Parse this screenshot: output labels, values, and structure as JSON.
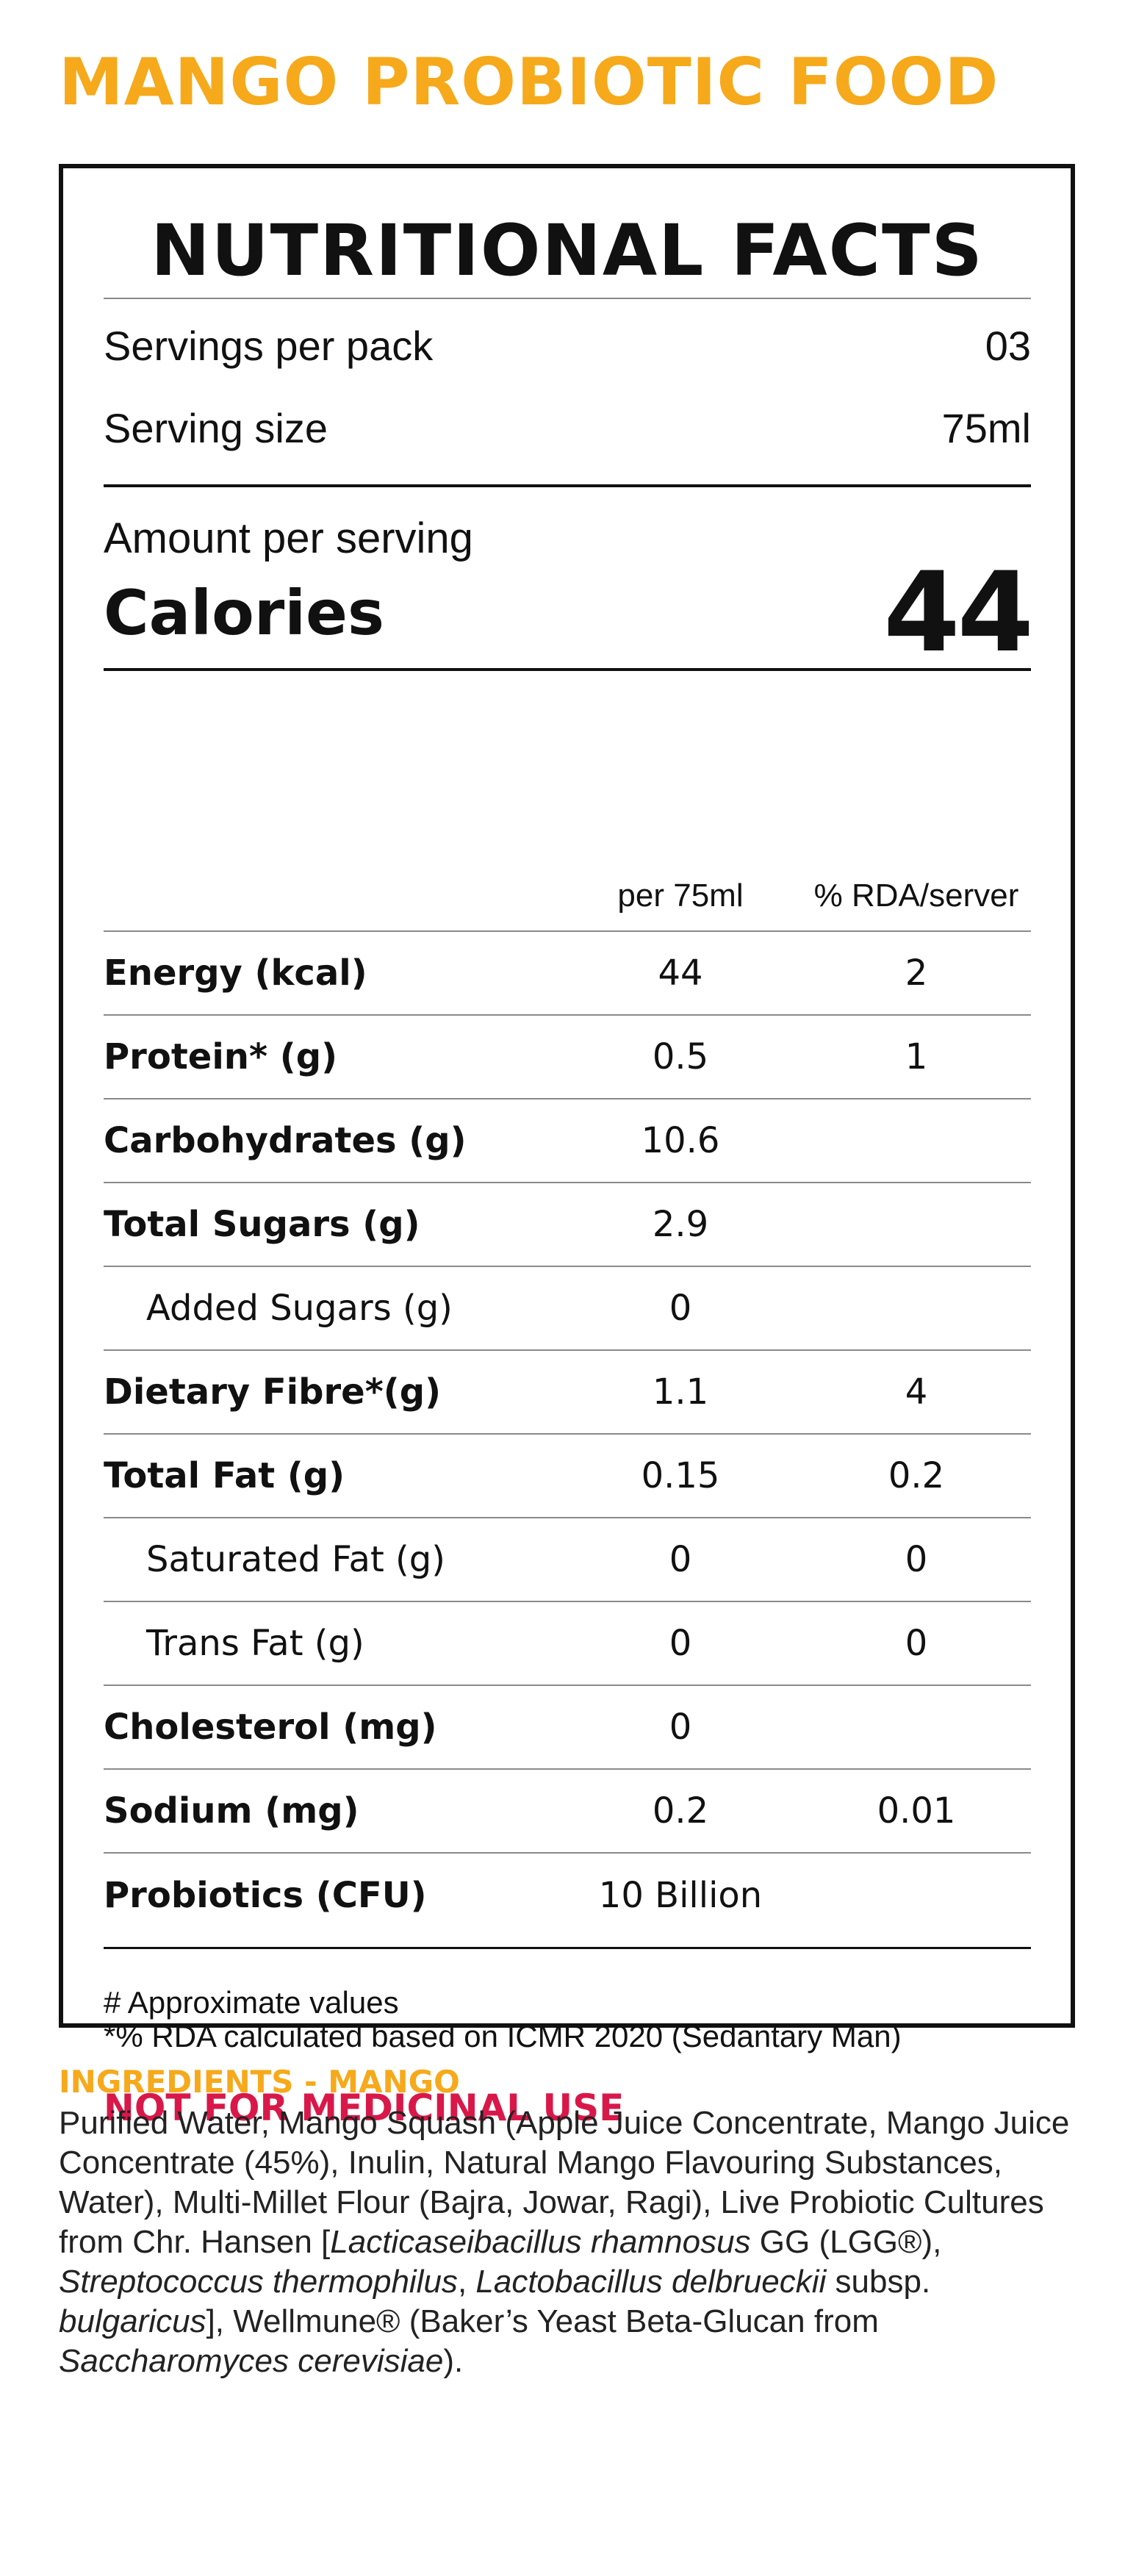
{
  "brand_title": "MANGO PROBIOTIC FOOD",
  "colors": {
    "accent": "#f6a91b",
    "warning": "#d9184a",
    "text": "#111111"
  },
  "panel": {
    "heading": "NUTRITIONAL FACTS",
    "servings_per_pack_label": "Servings per pack",
    "servings_per_pack_value": "03",
    "serving_size_label": "Serving size",
    "serving_size_value": "75ml",
    "amount_per_serving": "Amount per serving",
    "calories_label": "Calories",
    "calories_value": "44",
    "columns": {
      "per": "per 75ml",
      "rda": "% RDA/server"
    },
    "rows": [
      {
        "label": "Energy (kcal)",
        "per": "44",
        "rda": "2"
      },
      {
        "label": "Protein* (g)",
        "per": "0.5",
        "rda": "1"
      },
      {
        "label": "Carbohydrates (g)",
        "per": "10.6",
        "rda": ""
      },
      {
        "label": "Total Sugars (g)",
        "per": "2.9",
        "rda": ""
      },
      {
        "label": "Added Sugars (g)",
        "per": "0",
        "rda": ""
      },
      {
        "label": "Dietary Fibre*(g)",
        "per": "1.1",
        "rda": "4"
      },
      {
        "label": "Total Fat (g)",
        "per": "0.15",
        "rda": "0.2"
      },
      {
        "label": "Saturated Fat (g)",
        "per": "0",
        "rda": "0"
      },
      {
        "label": "Trans Fat (g)",
        "per": "0",
        "rda": "0"
      },
      {
        "label": "Cholesterol (mg)",
        "per": "0",
        "rda": ""
      },
      {
        "label": "Sodium (mg)",
        "per": "0.2",
        "rda": "0.01"
      },
      {
        "label": "Probiotics (CFU)",
        "per": "10 Billion",
        "rda": ""
      }
    ],
    "footnote_1": "# Approximate values",
    "footnote_2": "*% RDA calculated based on ICMR 2020 (Sedantary Man)",
    "warning": "NOT FOR MEDICINAL USE"
  },
  "ingredients": {
    "heading": "INGREDIENTS - MANGO",
    "t1": "Purified Water, Mango Squash (Apple Juice Concentrate, Mango Juice Concentrate (45%), Inulin, Natural Mango Flavouring Substances, Water), Multi-Millet Flour (Bajra, Jowar, Ragi), Live Probiotic Cultures from Chr. Hansen [",
    "i1": "Lacticaseibacillus rhamnosus",
    "t2": " GG (LGG®), ",
    "i2": "Streptococcus thermophilus",
    "t3": ", ",
    "i3": "Lactobacillus delbrueckii",
    "t4": " subsp. ",
    "i4": "bulgaricus",
    "t5": "], Wellmune® (Baker’s Yeast Beta-Glucan from ",
    "i5": "Saccharomyces cerevisiae",
    "t6": ")."
  }
}
